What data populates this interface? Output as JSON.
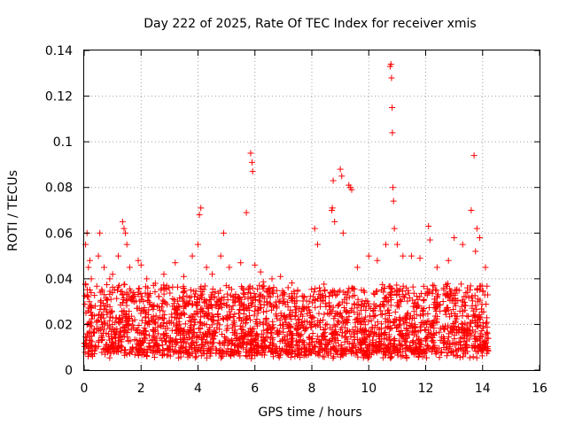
{
  "chart_data": {
    "type": "scatter",
    "title": "Day 222 of 2025, Rate Of TEC Index for receiver xmis",
    "xlabel": "GPS time / hours",
    "ylabel": "ROTI / TECUs",
    "xlim": [
      0,
      16
    ],
    "ylim": [
      0,
      0.14
    ],
    "x_ticks": [
      0,
      2,
      4,
      6,
      8,
      10,
      12,
      14,
      16
    ],
    "x_tick_labels": [
      "0",
      "2",
      "4",
      "6",
      "8",
      "10",
      "12",
      "14",
      "16"
    ],
    "y_ticks": [
      0,
      0.02,
      0.04,
      0.06,
      0.08,
      0.1,
      0.12,
      0.14
    ],
    "y_tick_labels": [
      "0",
      "0.02",
      "0.04",
      "0.06",
      "0.08",
      "0.1",
      "0.12",
      "0.14"
    ],
    "grid": true,
    "marker": "+",
    "color": "#ff0000",
    "series": [
      {
        "name": "ROTI",
        "points": [
          [
            0.05,
            0.055
          ],
          [
            0.1,
            0.06
          ],
          [
            0.15,
            0.045
          ],
          [
            0.2,
            0.048
          ],
          [
            0.25,
            0.04
          ],
          [
            0.5,
            0.05
          ],
          [
            0.55,
            0.06
          ],
          [
            0.7,
            0.045
          ],
          [
            0.9,
            0.04
          ],
          [
            1.0,
            0.042
          ],
          [
            1.2,
            0.05
          ],
          [
            1.35,
            0.065
          ],
          [
            1.4,
            0.062
          ],
          [
            1.45,
            0.06
          ],
          [
            1.5,
            0.055
          ],
          [
            1.6,
            0.045
          ],
          [
            1.9,
            0.048
          ],
          [
            2.0,
            0.046
          ],
          [
            2.2,
            0.04
          ],
          [
            2.5,
            0.038
          ],
          [
            2.8,
            0.042
          ],
          [
            3.2,
            0.047
          ],
          [
            3.5,
            0.041
          ],
          [
            3.8,
            0.05
          ],
          [
            4.0,
            0.055
          ],
          [
            4.05,
            0.068
          ],
          [
            4.1,
            0.071
          ],
          [
            4.3,
            0.045
          ],
          [
            4.5,
            0.042
          ],
          [
            4.8,
            0.05
          ],
          [
            4.9,
            0.06
          ],
          [
            5.1,
            0.045
          ],
          [
            5.5,
            0.047
          ],
          [
            5.7,
            0.069
          ],
          [
            5.85,
            0.095
          ],
          [
            5.9,
            0.091
          ],
          [
            5.92,
            0.087
          ],
          [
            6.0,
            0.046
          ],
          [
            6.2,
            0.043
          ],
          [
            6.6,
            0.04
          ],
          [
            6.9,
            0.041
          ],
          [
            7.5,
            0.035
          ],
          [
            8.1,
            0.062
          ],
          [
            8.2,
            0.055
          ],
          [
            8.7,
            0.07
          ],
          [
            8.72,
            0.071
          ],
          [
            8.75,
            0.083
          ],
          [
            8.8,
            0.065
          ],
          [
            9.0,
            0.088
          ],
          [
            9.05,
            0.085
          ],
          [
            9.1,
            0.06
          ],
          [
            9.3,
            0.081
          ],
          [
            9.35,
            0.08
          ],
          [
            9.4,
            0.079
          ],
          [
            9.6,
            0.045
          ],
          [
            10.0,
            0.05
          ],
          [
            10.3,
            0.048
          ],
          [
            10.6,
            0.055
          ],
          [
            10.75,
            0.133
          ],
          [
            10.78,
            0.134
          ],
          [
            10.8,
            0.128
          ],
          [
            10.82,
            0.115
          ],
          [
            10.83,
            0.104
          ],
          [
            10.85,
            0.08
          ],
          [
            10.87,
            0.074
          ],
          [
            10.9,
            0.062
          ],
          [
            11.0,
            0.055
          ],
          [
            11.2,
            0.05
          ],
          [
            11.5,
            0.05
          ],
          [
            11.8,
            0.049
          ],
          [
            12.1,
            0.063
          ],
          [
            12.15,
            0.057
          ],
          [
            12.4,
            0.045
          ],
          [
            12.8,
            0.048
          ],
          [
            13.0,
            0.058
          ],
          [
            13.3,
            0.055
          ],
          [
            13.6,
            0.07
          ],
          [
            13.7,
            0.094
          ],
          [
            13.75,
            0.052
          ],
          [
            13.8,
            0.062
          ],
          [
            13.9,
            0.058
          ],
          [
            14.1,
            0.045
          ]
        ],
        "dense_band": {
          "x_range": [
            0,
            14.2
          ],
          "typical_min": 0.005,
          "typical_max": 0.035
        }
      }
    ]
  }
}
